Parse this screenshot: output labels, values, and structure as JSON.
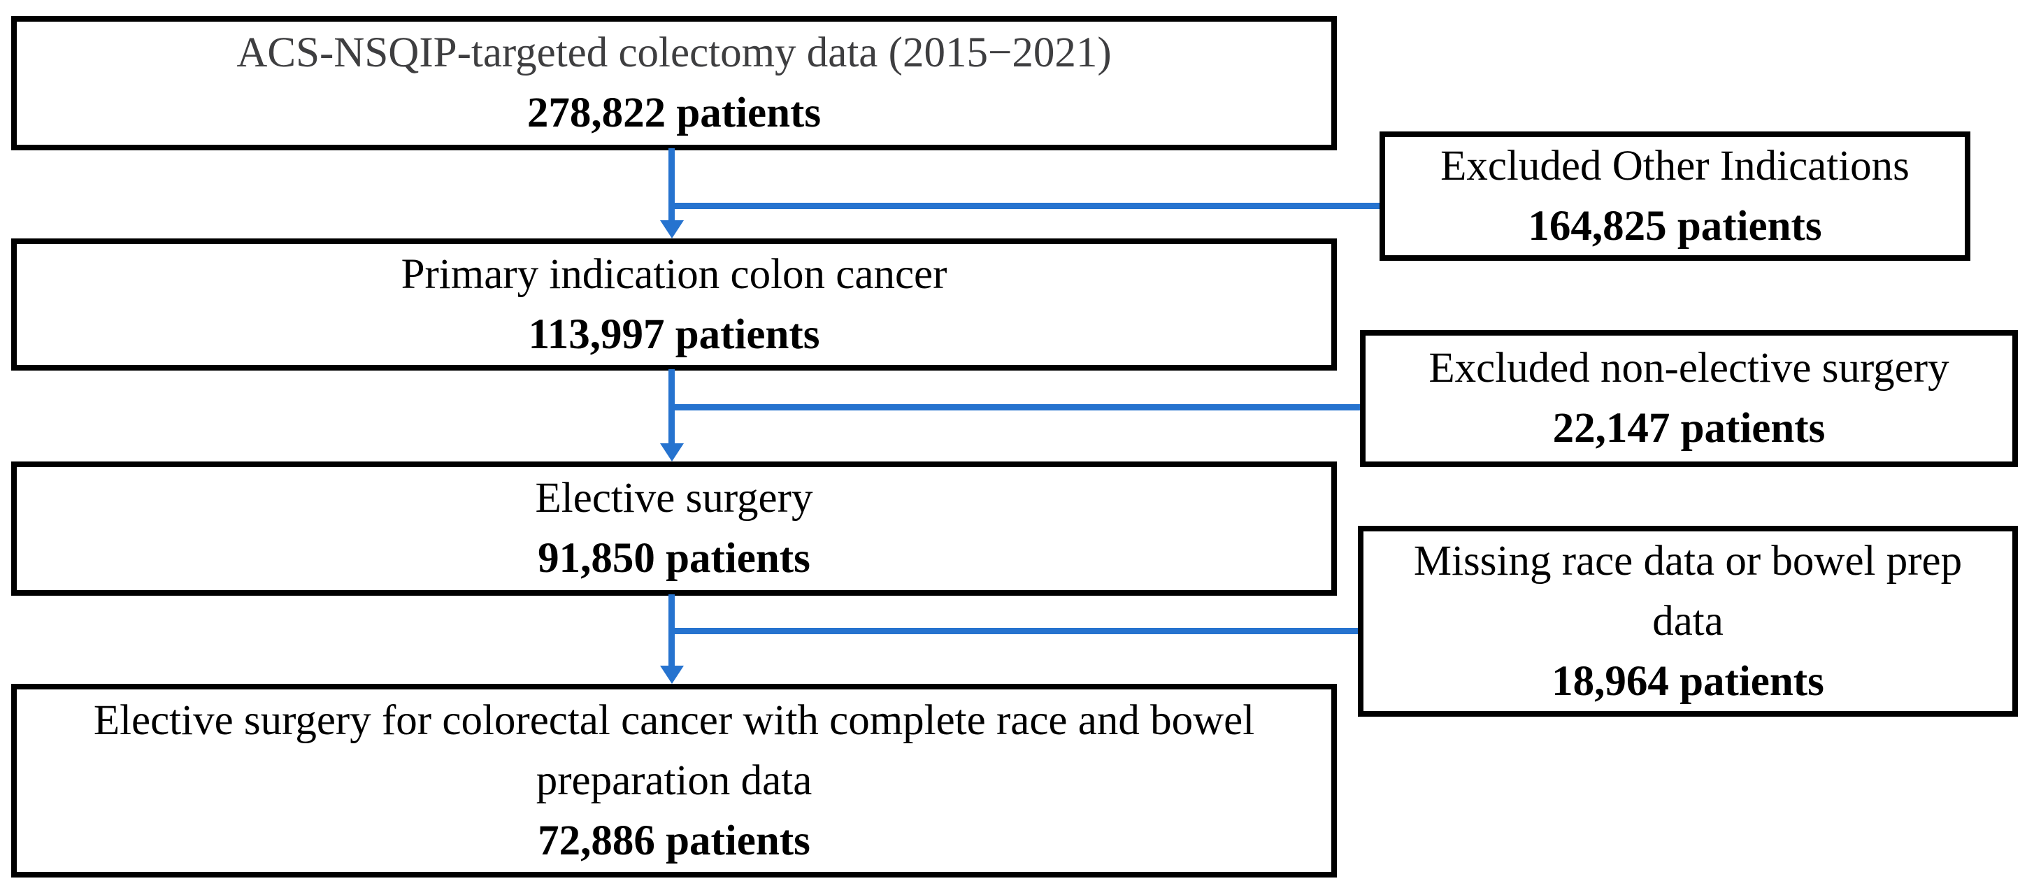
{
  "flowchart": {
    "colors": {
      "connector_blue": "#2673cf",
      "box_border": "#000000",
      "top_label_gray": "#3e3e40"
    },
    "main_boxes": [
      {
        "label_lines": [
          "ACS-NSQIP-targeted colectomy data (2015−2021)"
        ],
        "count": "278,822 patients"
      },
      {
        "label_lines": [
          "Primary indication colon cancer"
        ],
        "count": "113,997 patients"
      },
      {
        "label_lines": [
          "Elective surgery"
        ],
        "count": "91,850 patients"
      },
      {
        "label_lines": [
          "Elective surgery for colorectal cancer with complete race and bowel",
          "preparation data"
        ],
        "count": "72,886 patients"
      }
    ],
    "exclusion_boxes": [
      {
        "label_lines": [
          "Excluded Other Indications"
        ],
        "count": "164,825 patients"
      },
      {
        "label_lines": [
          "Excluded non-elective surgery"
        ],
        "count": "22,147 patients"
      },
      {
        "label_lines": [
          "Missing race data or bowel prep",
          "data"
        ],
        "count": "18,964 patients"
      }
    ]
  }
}
